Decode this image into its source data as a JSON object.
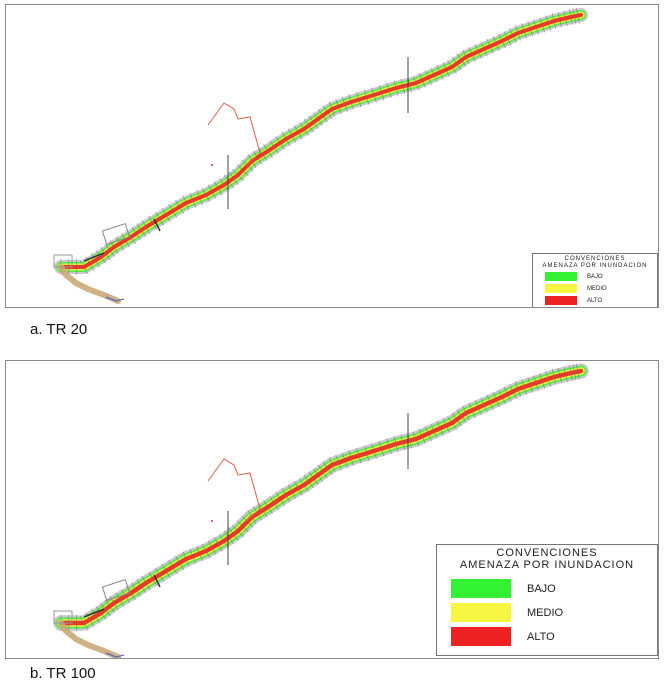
{
  "legend": {
    "title_line1": "CONVENCIONES",
    "title_line2": "AMENAZA POR INUNDACION",
    "items": [
      {
        "label": "BAJO",
        "color": "#33f233"
      },
      {
        "label": "MEDIO",
        "color": "#f5f542"
      },
      {
        "label": "ALTO",
        "color": "#ee2222"
      }
    ]
  },
  "captions": {
    "a": "a.   TR 20",
    "b": "b.   TR 100"
  },
  "colors": {
    "river_outline": "#7a7a7a",
    "polygon_outline": "#e06040",
    "downstream_reach": "#c9a878"
  }
}
